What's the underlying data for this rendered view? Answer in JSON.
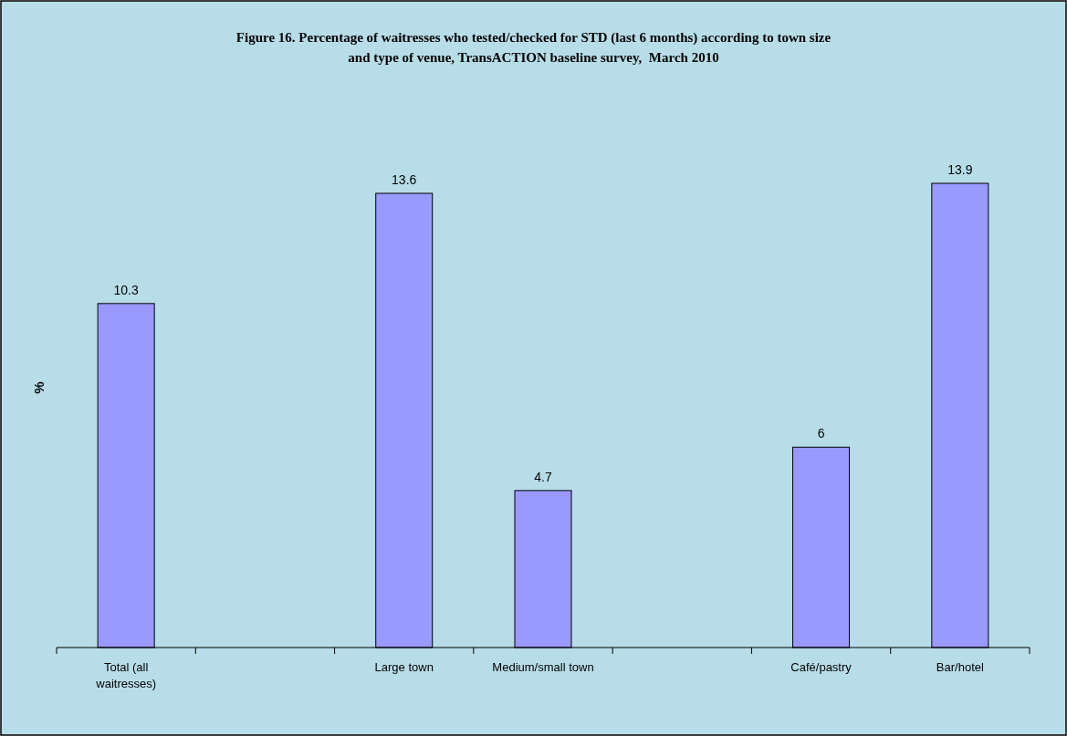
{
  "chart_data": {
    "type": "bar",
    "title": "Figure 16. Percentage of waitresses who tested/checked for STD (last 6 months) according to town size\nand type of venue, TransACTION baseline survey,  March 2010",
    "ylabel": "%",
    "categories": [
      "Total (all waitresses)",
      null,
      "Large town",
      "Medium/small town",
      null,
      "Café/pastry",
      "Bar/hotel"
    ],
    "values": [
      10.3,
      null,
      13.6,
      4.7,
      null,
      6,
      13.9
    ],
    "color": "#9999ff",
    "data_labels": true,
    "tick_labels": "x"
  }
}
